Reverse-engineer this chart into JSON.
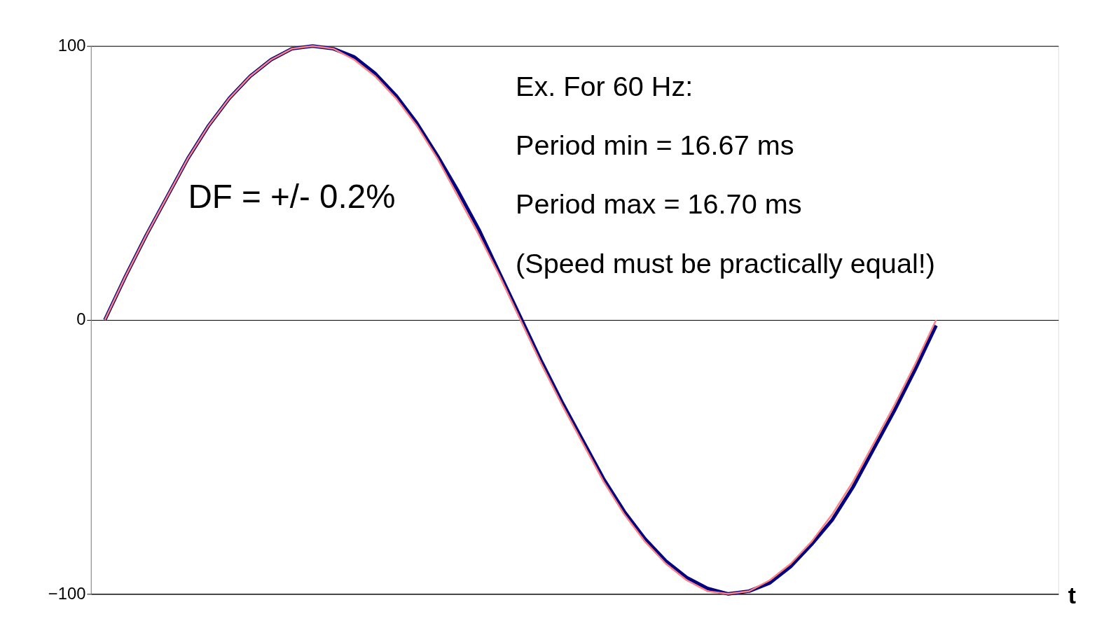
{
  "chart_data": {
    "type": "line",
    "categories": [
      null,
      null,
      null,
      null,
      null,
      null,
      null,
      null,
      null,
      null,
      null,
      null,
      null,
      null,
      null,
      null,
      null,
      null,
      null,
      null,
      null,
      null,
      null,
      null,
      null,
      null,
      null,
      null,
      null,
      null,
      null,
      null,
      null,
      null,
      null,
      null,
      null,
      null,
      null,
      null,
      null
    ],
    "series": [
      {
        "color": "#000080",
        "values": [
          0,
          16,
          31,
          45,
          59,
          71,
          81,
          89,
          95,
          99,
          100,
          99,
          96,
          90,
          82,
          72,
          60,
          47,
          33,
          17,
          1,
          -15,
          -30,
          -44,
          -58,
          -70,
          -80,
          -88,
          -94,
          -98,
          -100,
          -99,
          -96,
          -90,
          -82,
          -73,
          -61,
          -47,
          -33,
          -18,
          -2
        ]
      },
      {
        "color": "#ff8080",
        "values": [
          0,
          16,
          31,
          45,
          59,
          71,
          81,
          89,
          95,
          99,
          100,
          99,
          95,
          89,
          81,
          71,
          59,
          45,
          31,
          16,
          0,
          -16,
          -31,
          -45,
          -59,
          -71,
          -81,
          -89,
          -95,
          -99,
          -100,
          -99,
          -95,
          -89,
          -81,
          -71,
          -59,
          -45,
          -31,
          -16,
          0
        ]
      }
    ],
    "ylim": [
      -100,
      100
    ],
    "yticks": [
      -100,
      0,
      100
    ],
    "grid": "y",
    "tick_labels": "y",
    "marker": "none",
    "line_style": "solid",
    "annotations": [
      "DF = +/- 0.2%",
      "Ex. For 60 Hz:",
      "Period min = 16.67 ms",
      "Period max = 16.70 ms",
      "(Speed must be practically equal!)",
      "t"
    ]
  }
}
